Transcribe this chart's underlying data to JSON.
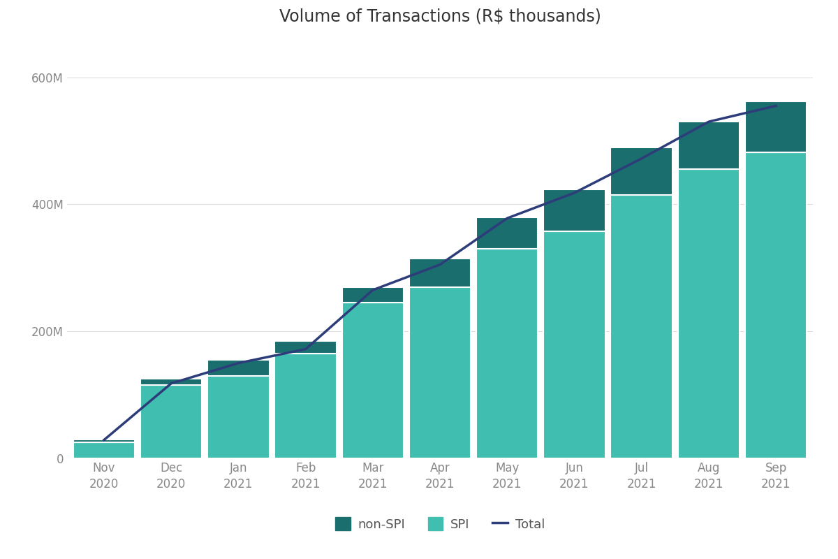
{
  "title": "Volume of Transactions (R$ thousands)",
  "categories": [
    "Nov\n2020",
    "Dec\n2020",
    "Jan\n2021",
    "Feb\n2021",
    "Mar\n2021",
    "Apr\n2021",
    "May\n2021",
    "Jun\n2021",
    "Jul\n2021",
    "Aug\n2021",
    "Sep\n2021"
  ],
  "spi_values": [
    25000000,
    115000000,
    130000000,
    165000000,
    245000000,
    270000000,
    330000000,
    358000000,
    415000000,
    455000000,
    482000000
  ],
  "non_spi_values": [
    5000000,
    10000000,
    25000000,
    20000000,
    25000000,
    45000000,
    50000000,
    65000000,
    75000000,
    75000000,
    80000000
  ],
  "total_line": [
    29000000,
    118000000,
    150000000,
    172000000,
    265000000,
    305000000,
    378000000,
    418000000,
    472000000,
    530000000,
    555000000
  ],
  "color_spi": "#40BFB0",
  "color_non_spi": "#1A6E6E",
  "color_total_line": "#2D3D7A",
  "color_background": "#FFFFFF",
  "color_plot_bg": "#FFFFFF",
  "ylim": [
    0,
    660000000
  ],
  "yticks": [
    0,
    200000000,
    400000000,
    600000000
  ],
  "ytick_labels": [
    "0",
    "200M",
    "400M",
    "600M"
  ],
  "title_fontsize": 17,
  "tick_fontsize": 12,
  "legend_fontsize": 13,
  "bar_width": 0.92,
  "grid_color": "#DDDDDD",
  "bar_edge_color": "#FFFFFF"
}
